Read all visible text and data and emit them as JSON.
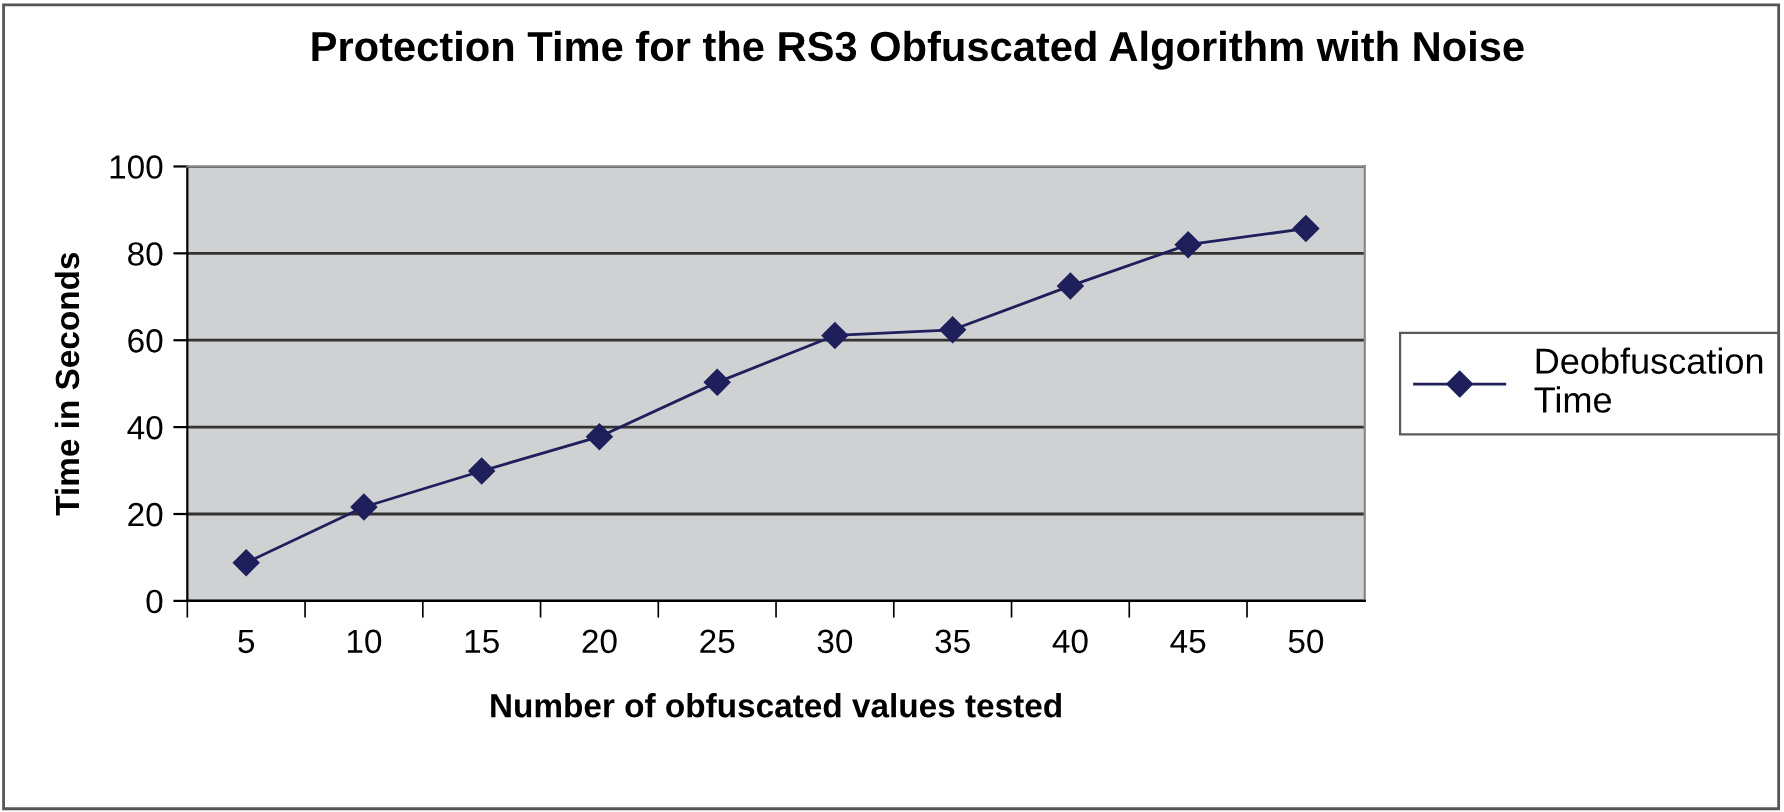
{
  "chart_data": {
    "type": "line",
    "title": "Protection Time for the RS3 Obfuscated Algorithm with Noise",
    "xlabel": "Number of obfuscated values tested",
    "ylabel": "Time in Seconds",
    "categories": [
      "5",
      "10",
      "15",
      "20",
      "25",
      "30",
      "35",
      "40",
      "45",
      "50"
    ],
    "series": [
      {
        "name": "Deobfuscation\nTime",
        "color": "#1f1f5c",
        "values": [
          8.8,
          21.6,
          29.9,
          37.8,
          50.3,
          61.1,
          62.4,
          72.5,
          82,
          85.7
        ]
      }
    ],
    "ylim": [
      0,
      100
    ],
    "yticks": [
      0,
      20,
      40,
      60,
      80,
      100
    ],
    "grid": "y",
    "legend": "right",
    "marker": "diamond",
    "line_style": "solid"
  }
}
